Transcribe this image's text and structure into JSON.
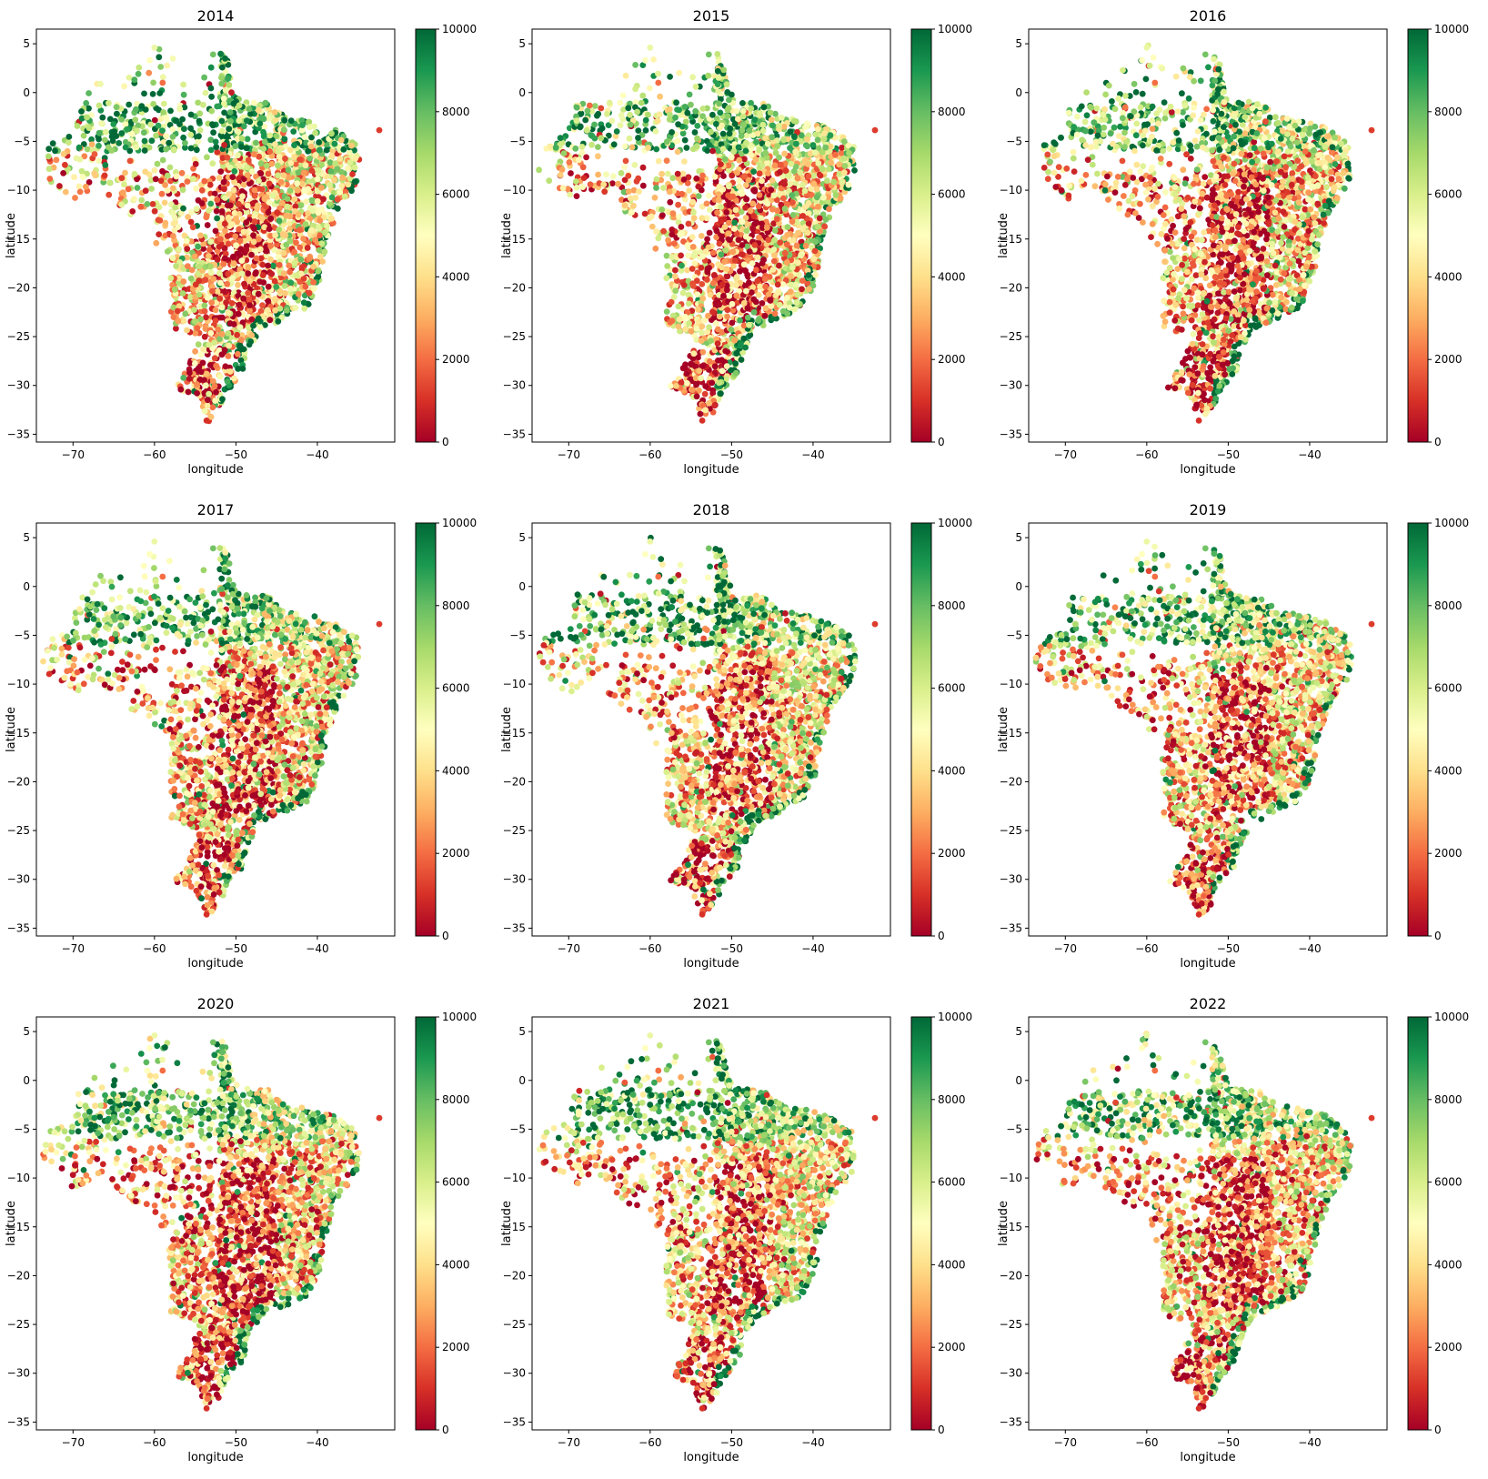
{
  "figure": {
    "colormap": "RdYlGn",
    "colormap_stops": [
      "#a50026",
      "#d73027",
      "#f46d43",
      "#fdae61",
      "#fee08b",
      "#ffffbf",
      "#d9ef8b",
      "#a6d96a",
      "#66bd63",
      "#1a9850",
      "#006837"
    ]
  },
  "chart_data": [
    {
      "type": "scatter",
      "title": "2014",
      "xlabel": "longitude",
      "ylabel": "latitude",
      "xlim": [
        -74.5,
        -30.5
      ],
      "ylim": [
        -35.8,
        6.5
      ],
      "xticks": [
        -70,
        -60,
        -50,
        -40
      ],
      "yticks": [
        5,
        0,
        -5,
        -10,
        -15,
        -20,
        -25,
        -30,
        -35
      ],
      "colorbar": {
        "range": [
          0,
          10000
        ],
        "ticks": [
          0,
          2000,
          4000,
          6000,
          8000,
          10000
        ]
      },
      "grid": false,
      "legend": "none",
      "seed": 2014,
      "tone": 0.0
    },
    {
      "type": "scatter",
      "title": "2015",
      "xlabel": "longitude",
      "ylabel": "latitude",
      "xlim": [
        -74.5,
        -30.5
      ],
      "ylim": [
        -35.8,
        6.5
      ],
      "xticks": [
        -70,
        -60,
        -50,
        -40
      ],
      "yticks": [
        5,
        0,
        -5,
        -10,
        -15,
        -20,
        -25,
        -30,
        -35
      ],
      "colorbar": {
        "range": [
          0,
          10000
        ],
        "ticks": [
          0,
          2000,
          4000,
          6000,
          8000,
          10000
        ]
      },
      "grid": false,
      "legend": "none",
      "seed": 2015,
      "tone": -0.02
    },
    {
      "type": "scatter",
      "title": "2016",
      "xlabel": "longitude",
      "ylabel": "latitude",
      "xlim": [
        -74.5,
        -30.5
      ],
      "ylim": [
        -35.8,
        6.5
      ],
      "xticks": [
        -70,
        -60,
        -50,
        -40
      ],
      "yticks": [
        5,
        0,
        -5,
        -10,
        -15,
        -20,
        -25,
        -30,
        -35
      ],
      "colorbar": {
        "range": [
          0,
          10000
        ],
        "ticks": [
          0,
          2000,
          4000,
          6000,
          8000,
          10000
        ]
      },
      "grid": false,
      "legend": "none",
      "seed": 2016,
      "tone": -0.04
    },
    {
      "type": "scatter",
      "title": "2017",
      "xlabel": "longitude",
      "ylabel": "latitude",
      "xlim": [
        -74.5,
        -30.5
      ],
      "ylim": [
        -35.8,
        6.5
      ],
      "xticks": [
        -70,
        -60,
        -50,
        -40
      ],
      "yticks": [
        5,
        0,
        -5,
        -10,
        -15,
        -20,
        -25,
        -30,
        -35
      ],
      "colorbar": {
        "range": [
          0,
          10000
        ],
        "ticks": [
          0,
          2000,
          4000,
          6000,
          8000,
          10000
        ]
      },
      "grid": false,
      "legend": "none",
      "seed": 2017,
      "tone": -0.03
    },
    {
      "type": "scatter",
      "title": "2018",
      "xlabel": "longitude",
      "ylabel": "latitude",
      "xlim": [
        -74.5,
        -30.5
      ],
      "ylim": [
        -35.8,
        6.5
      ],
      "xticks": [
        -70,
        -60,
        -50,
        -40
      ],
      "yticks": [
        5,
        0,
        -5,
        -10,
        -15,
        -20,
        -25,
        -30,
        -35
      ],
      "colorbar": {
        "range": [
          0,
          10000
        ],
        "ticks": [
          0,
          2000,
          4000,
          6000,
          8000,
          10000
        ]
      },
      "grid": false,
      "legend": "none",
      "seed": 2018,
      "tone": -0.01
    },
    {
      "type": "scatter",
      "title": "2019",
      "xlabel": "longitude",
      "ylabel": "latitude",
      "xlim": [
        -74.5,
        -30.5
      ],
      "ylim": [
        -35.8,
        6.5
      ],
      "xticks": [
        -70,
        -60,
        -50,
        -40
      ],
      "yticks": [
        5,
        0,
        -5,
        -10,
        -15,
        -20,
        -25,
        -30,
        -35
      ],
      "colorbar": {
        "range": [
          0,
          10000
        ],
        "ticks": [
          0,
          2000,
          4000,
          6000,
          8000,
          10000
        ]
      },
      "grid": false,
      "legend": "none",
      "seed": 2019,
      "tone": -0.03
    },
    {
      "type": "scatter",
      "title": "2020",
      "xlabel": "longitude",
      "ylabel": "latitude",
      "xlim": [
        -74.5,
        -30.5
      ],
      "ylim": [
        -35.8,
        6.5
      ],
      "xticks": [
        -70,
        -60,
        -50,
        -40
      ],
      "yticks": [
        5,
        0,
        -5,
        -10,
        -15,
        -20,
        -25,
        -30,
        -35
      ],
      "colorbar": {
        "range": [
          0,
          10000
        ],
        "ticks": [
          0,
          2000,
          4000,
          6000,
          8000,
          10000
        ]
      },
      "grid": false,
      "legend": "none",
      "seed": 2020,
      "tone": -0.06
    },
    {
      "type": "scatter",
      "title": "2021",
      "xlabel": "longitude",
      "ylabel": "latitude",
      "xlim": [
        -74.5,
        -30.5
      ],
      "ylim": [
        -35.8,
        6.5
      ],
      "xticks": [
        -70,
        -60,
        -50,
        -40
      ],
      "yticks": [
        5,
        0,
        -5,
        -10,
        -15,
        -20,
        -25,
        -30,
        -35
      ],
      "colorbar": {
        "range": [
          0,
          10000
        ],
        "ticks": [
          0,
          2000,
          4000,
          6000,
          8000,
          10000
        ]
      },
      "grid": false,
      "legend": "none",
      "seed": 2021,
      "tone": -0.02
    },
    {
      "type": "scatter",
      "title": "2022",
      "xlabel": "longitude",
      "ylabel": "latitude",
      "xlim": [
        -74.5,
        -30.5
      ],
      "ylim": [
        -35.8,
        6.5
      ],
      "xticks": [
        -70,
        -60,
        -50,
        -40
      ],
      "yticks": [
        5,
        0,
        -5,
        -10,
        -15,
        -20,
        -25,
        -30,
        -35
      ],
      "colorbar": {
        "range": [
          0,
          10000
        ],
        "ticks": [
          0,
          2000,
          4000,
          6000,
          8000,
          10000
        ]
      },
      "grid": false,
      "legend": "none",
      "seed": 2022,
      "tone": -0.05
    }
  ]
}
